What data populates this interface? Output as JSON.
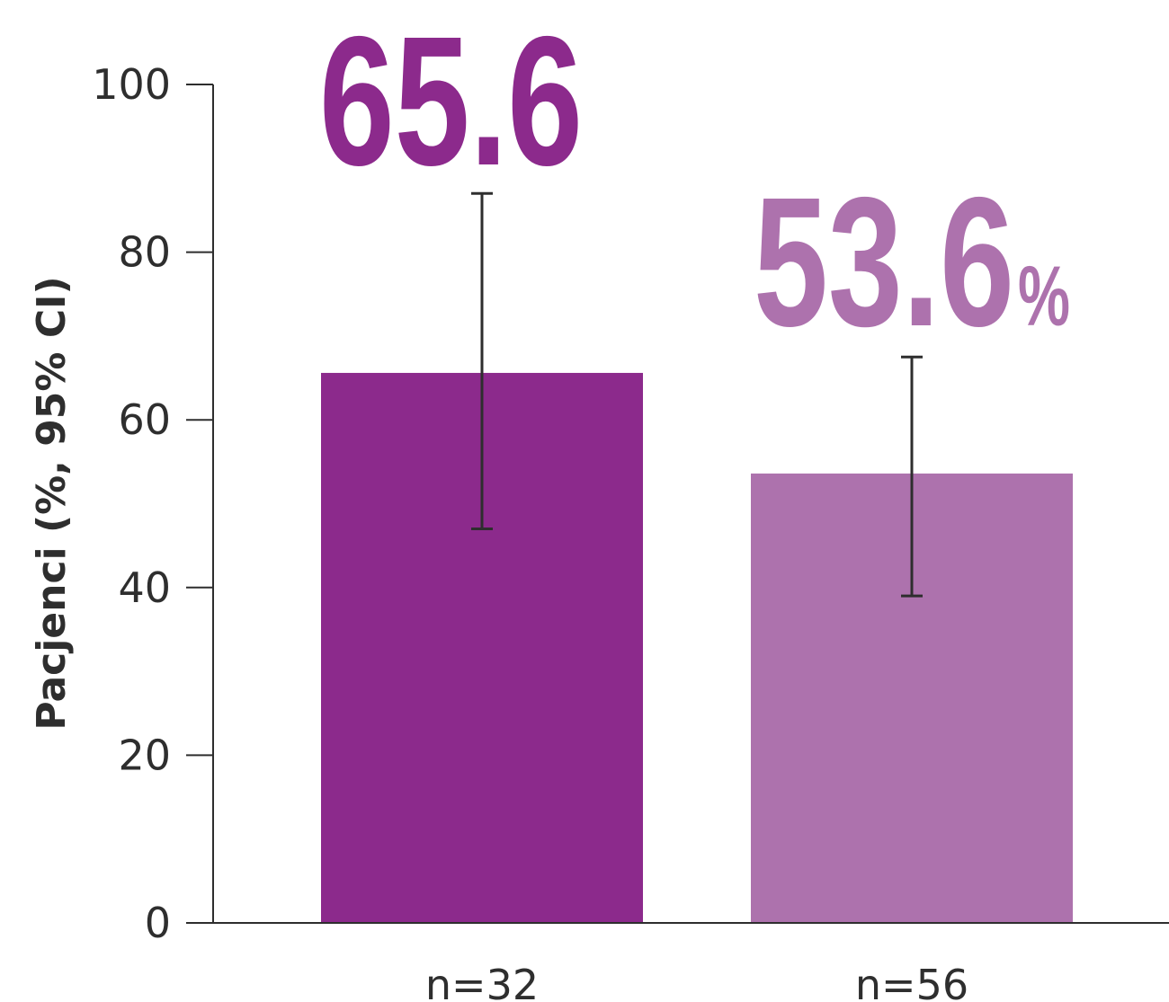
{
  "chart_data": {
    "type": "bar",
    "categories": [
      "n=32",
      "n=56"
    ],
    "values": [
      65.6,
      53.6
    ],
    "error_bars": [
      {
        "low": 47.0,
        "high": 87.0
      },
      {
        "low": 39.0,
        "high": 67.5
      }
    ],
    "value_labels": [
      "65.6",
      "53.6"
    ],
    "value_unit": "%",
    "colors": [
      "#8c2a8c",
      "#ad72ad"
    ],
    "error_bar_color": "#2e2e2e",
    "ylabel": "Pacjenci (%, 95% CI)",
    "ylim": [
      0,
      100
    ],
    "yticks": [
      0,
      20,
      40,
      60,
      80,
      100
    ],
    "grid": false,
    "legend": "none"
  }
}
